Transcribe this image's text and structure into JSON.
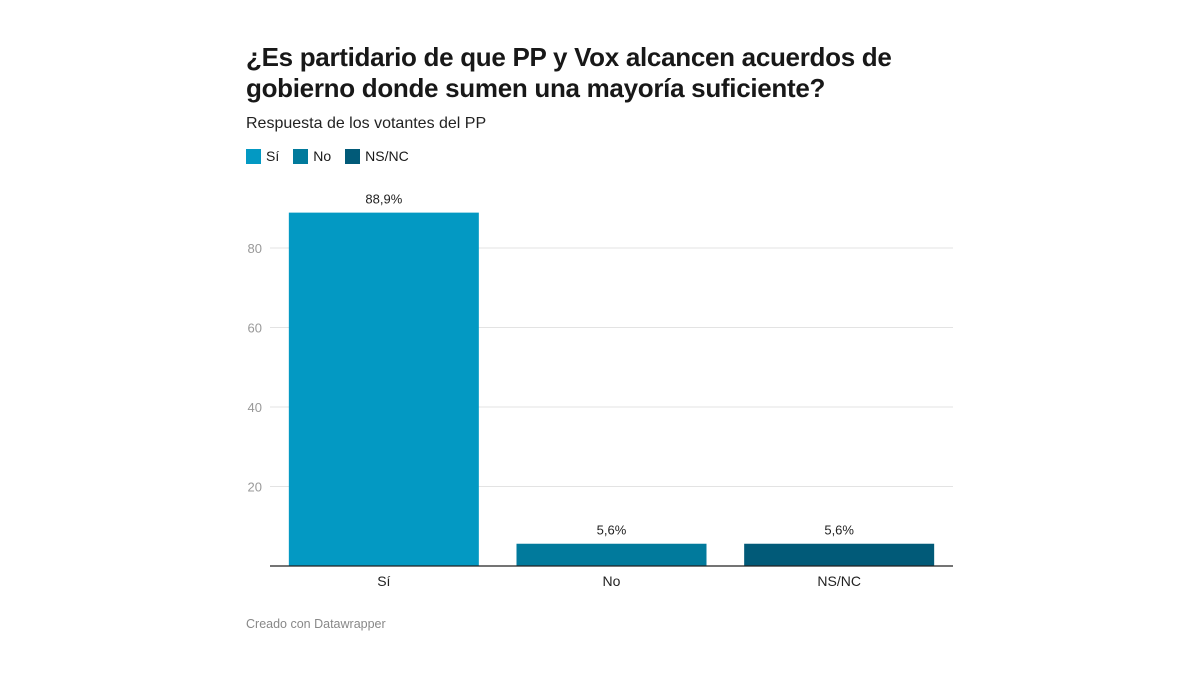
{
  "chart_data": {
    "type": "bar",
    "title": "¿Es partidario de que PP y Vox alcancen acuerdos de gobierno donde sumen una mayoría suficiente?",
    "subtitle": "Respuesta de los votantes del PP",
    "categories": [
      "Sí",
      "No",
      "NS/NC"
    ],
    "values": [
      88.9,
      5.6,
      5.6
    ],
    "value_labels": [
      "88,9%",
      "5,6%",
      "5,6%"
    ],
    "colors": [
      "#0399c3",
      "#017a9c",
      "#015a78"
    ],
    "legend": [
      "Sí",
      "No",
      "NS/NC"
    ],
    "legend_placement": "top-left",
    "ylim": [
      0,
      90
    ],
    "yticks": [
      20,
      40,
      60,
      80
    ],
    "grid": true,
    "xlabel": "",
    "ylabel": ""
  },
  "footer": "Creado con Datawrapper"
}
